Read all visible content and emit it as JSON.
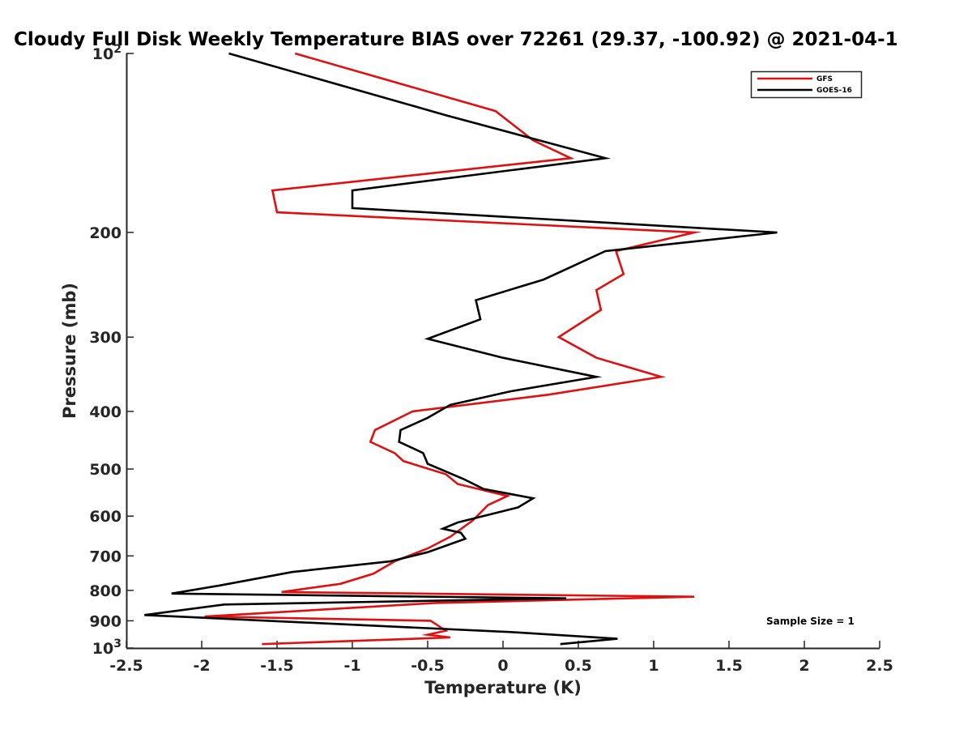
{
  "chart_data": {
    "type": "line",
    "title": "Cloudy Full Disk Weekly Temperature BIAS over 72261 (29.37, -100.92) @ 2021-04-1",
    "xlabel": "Temperature (K)",
    "ylabel": "Pressure (mb)",
    "xlim": [
      -2.5,
      2.5
    ],
    "ylim": [
      100,
      1000
    ],
    "y_scale": "log",
    "y_reversed": true,
    "grid": false,
    "legend_position": "top-right",
    "x_ticks": [
      "-2.5",
      "-2",
      "-1.5",
      "-1",
      "-0.5",
      "0",
      "0.5",
      "1",
      "1.5",
      "2",
      "2.5"
    ],
    "y_ticks": [
      {
        "value": 100,
        "base": "10",
        "exp": "2"
      },
      {
        "value": 200,
        "label": "200"
      },
      {
        "value": 300,
        "label": "300"
      },
      {
        "value": 400,
        "label": "400"
      },
      {
        "value": 500,
        "label": "500"
      },
      {
        "value": 600,
        "label": "600"
      },
      {
        "value": 700,
        "label": "700"
      },
      {
        "value": 800,
        "label": "800"
      },
      {
        "value": 900,
        "label": "900"
      },
      {
        "value": 1000,
        "base": "10",
        "exp": "3"
      }
    ],
    "series": [
      {
        "name": "GFS",
        "color": "#e01010",
        "points": [
          [
            -1.38,
            100
          ],
          [
            -0.05,
            125
          ],
          [
            0.2,
            140
          ],
          [
            0.45,
            150
          ],
          [
            -1.53,
            170
          ],
          [
            -1.5,
            185
          ],
          [
            1.27,
            200
          ],
          [
            0.75,
            215
          ],
          [
            0.8,
            235
          ],
          [
            0.62,
            250
          ],
          [
            0.65,
            270
          ],
          [
            0.37,
            300
          ],
          [
            0.62,
            325
          ],
          [
            1.05,
            350
          ],
          [
            0.3,
            375
          ],
          [
            -0.6,
            400
          ],
          [
            -0.85,
            430
          ],
          [
            -0.88,
            450
          ],
          [
            -0.72,
            470
          ],
          [
            -0.66,
            485
          ],
          [
            -0.38,
            510
          ],
          [
            -0.3,
            530
          ],
          [
            0.03,
            555
          ],
          [
            -0.1,
            575
          ],
          [
            -0.2,
            610
          ],
          [
            -0.35,
            650
          ],
          [
            -0.5,
            680
          ],
          [
            -0.72,
            715
          ],
          [
            -0.86,
            750
          ],
          [
            -1.08,
            780
          ],
          [
            -1.47,
            805
          ],
          [
            1.27,
            820
          ],
          [
            -0.45,
            840
          ],
          [
            -1.98,
            885
          ],
          [
            -0.48,
            900
          ],
          [
            -0.38,
            935
          ],
          [
            -0.5,
            950
          ],
          [
            -0.35,
            960
          ],
          [
            -1.6,
            985
          ]
        ]
      },
      {
        "name": "GOES-16",
        "color": "#000000",
        "points": [
          [
            -1.82,
            100
          ],
          [
            -0.38,
            127
          ],
          [
            0.68,
            150
          ],
          [
            -1.0,
            170
          ],
          [
            -1.0,
            182
          ],
          [
            1.82,
            200
          ],
          [
            0.68,
            215
          ],
          [
            0.27,
            240
          ],
          [
            -0.18,
            260
          ],
          [
            -0.15,
            280
          ],
          [
            -0.5,
            302
          ],
          [
            0.0,
            325
          ],
          [
            0.62,
            350
          ],
          [
            0.05,
            370
          ],
          [
            -0.35,
            390
          ],
          [
            -0.5,
            410
          ],
          [
            -0.68,
            430
          ],
          [
            -0.69,
            450
          ],
          [
            -0.53,
            470
          ],
          [
            -0.5,
            490
          ],
          [
            -0.26,
            520
          ],
          [
            -0.13,
            540
          ],
          [
            0.2,
            560
          ],
          [
            0.1,
            580
          ],
          [
            -0.3,
            615
          ],
          [
            -0.4,
            630
          ],
          [
            -0.28,
            640
          ],
          [
            -0.25,
            655
          ],
          [
            -0.5,
            690
          ],
          [
            -0.75,
            715
          ],
          [
            -1.4,
            745
          ],
          [
            -1.88,
            785
          ],
          [
            -2.2,
            810
          ],
          [
            0.42,
            825
          ],
          [
            -1.85,
            845
          ],
          [
            -2.38,
            880
          ],
          [
            0.05,
            940
          ],
          [
            0.76,
            965
          ],
          [
            0.38,
            985
          ]
        ]
      }
    ],
    "annotation": "Sample Size = 1"
  }
}
